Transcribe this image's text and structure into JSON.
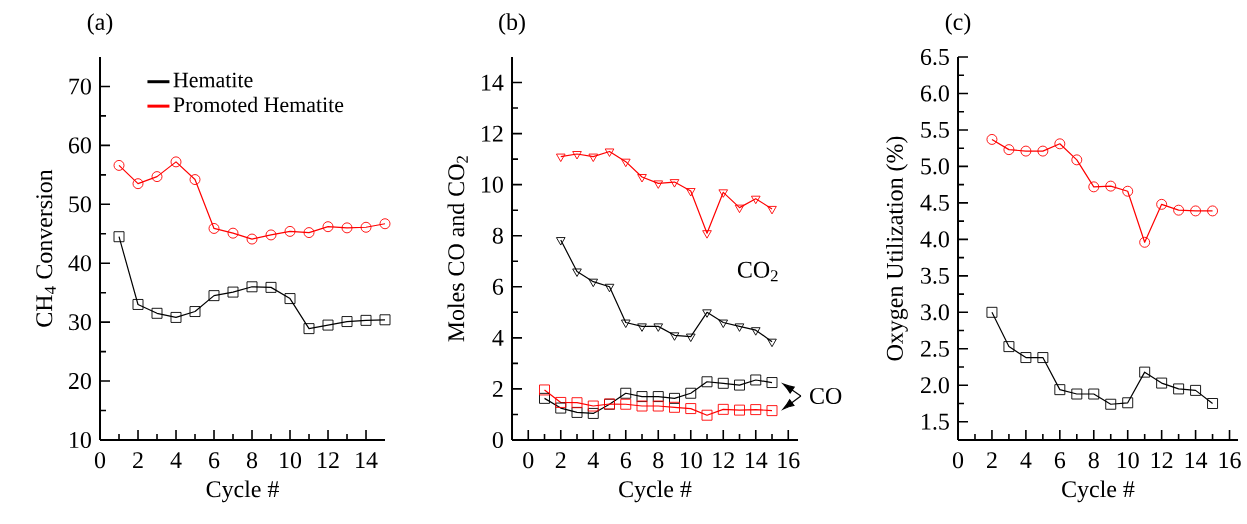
{
  "chart_data": [
    {
      "type": "line",
      "title": "(a)",
      "xlabel": "Cycle #",
      "ylabel": "CH$_{4}$ Conversion",
      "x": [
        1,
        2,
        3,
        4,
        5,
        6,
        7,
        8,
        9,
        10,
        11,
        12,
        13,
        14,
        15
      ],
      "series": [
        {
          "name": "Hematite",
          "color": "#000000",
          "marker": "square",
          "values": [
            44.5,
            33,
            31.5,
            30.8,
            31.8,
            34.5,
            35.1,
            36,
            35.9,
            34,
            28.9,
            29.5,
            30.1,
            30.3,
            30.4
          ]
        },
        {
          "name": "Promoted Hematite",
          "color": "#ff0000",
          "marker": "circle",
          "values": [
            56.6,
            53.5,
            54.7,
            57.2,
            54.2,
            45.9,
            45.1,
            44.1,
            44.8,
            45.4,
            45.2,
            46.2,
            46,
            46.1,
            46.7
          ]
        }
      ],
      "xlim": [
        0,
        15
      ],
      "ylim": [
        10,
        75
      ],
      "xticks": [
        0,
        2,
        4,
        6,
        8,
        10,
        12,
        14
      ],
      "yticks": [
        10,
        20,
        30,
        40,
        50,
        60,
        70
      ],
      "legend": "top left",
      "line_style": "solid"
    },
    {
      "type": "line",
      "title": "(b)",
      "xlabel": "Cycle #",
      "ylabel": "Moles CO and CO$_{2}$",
      "series": [
        {
          "color": "#000000",
          "marker": "triangle",
          "x": [
            2,
            3,
            4,
            5,
            6,
            7,
            8,
            9,
            10,
            11,
            12,
            13,
            14,
            15
          ],
          "values": [
            7.83,
            6.6,
            6.2,
            6.0,
            4.6,
            4.45,
            4.45,
            4.1,
            4.05,
            5.0,
            4.6,
            4.45,
            4.3,
            3.85
          ]
        },
        {
          "color": "#ff0000",
          "marker": "triangle",
          "x": [
            2,
            3,
            4,
            5,
            6,
            7,
            8,
            9,
            10,
            11,
            12,
            13,
            14,
            15
          ],
          "values": [
            11.1,
            11.2,
            11.1,
            11.3,
            10.9,
            10.3,
            10.05,
            10.1,
            9.75,
            8.1,
            9.7,
            9.1,
            9.45,
            9.05
          ]
        },
        {
          "color": "#000000",
          "marker": "square",
          "x": [
            1,
            2,
            3,
            4,
            5,
            6,
            7,
            8,
            9,
            10,
            11,
            12,
            13,
            14,
            15
          ],
          "values": [
            1.63,
            1.25,
            1.08,
            1.04,
            1.4,
            1.83,
            1.7,
            1.7,
            1.63,
            1.83,
            2.28,
            2.22,
            2.15,
            2.35,
            2.25
          ]
        },
        {
          "color": "#ff0000",
          "marker": "square",
          "x": [
            1,
            2,
            3,
            4,
            5,
            6,
            7,
            8,
            9,
            10,
            11,
            12,
            13,
            14,
            15
          ],
          "values": [
            1.96,
            1.47,
            1.46,
            1.33,
            1.41,
            1.4,
            1.33,
            1.33,
            1.28,
            1.23,
            0.97,
            1.2,
            1.17,
            1.19,
            1.15
          ]
        }
      ],
      "annotations": [
        "CO$_{2}$",
        "CO"
      ],
      "xlim": [
        -1,
        16.6
      ],
      "ylim": [
        0,
        15
      ],
      "xticks": [
        0,
        2,
        4,
        6,
        8,
        10,
        12,
        14,
        16
      ],
      "yticks": [
        0,
        2,
        4,
        6,
        8,
        10,
        12,
        14
      ],
      "legend": false,
      "line_style": "solid"
    },
    {
      "type": "line",
      "title": "(c)",
      "xlabel": "Cycle #",
      "ylabel": "Oxygen Utilization (%)",
      "x": [
        2,
        3,
        4,
        5,
        6,
        7,
        8,
        9,
        10,
        11,
        12,
        13,
        14,
        15
      ],
      "series": [
        {
          "color": "#000000",
          "marker": "square",
          "values": [
            3.0,
            2.53,
            2.38,
            2.38,
            1.94,
            1.88,
            1.88,
            1.74,
            1.76,
            2.18,
            2.03,
            1.95,
            1.93,
            1.75
          ]
        },
        {
          "color": "#ff0000",
          "marker": "circle",
          "values": [
            5.37,
            5.23,
            5.21,
            5.21,
            5.31,
            5.09,
            4.72,
            4.73,
            4.66,
            3.96,
            4.48,
            4.4,
            4.39,
            4.39
          ]
        }
      ],
      "xlim": [
        0,
        16.5
      ],
      "ylim": [
        1.25,
        6.5
      ],
      "xticks": [
        0,
        2,
        4,
        6,
        8,
        10,
        12,
        14,
        16
      ],
      "yticks": [
        1.5,
        {
          "value": 2,
          "label": "2.0"
        },
        2.5,
        {
          "value": 3,
          "label": "3.0"
        },
        3.5,
        {
          "value": 4,
          "label": "4.0"
        },
        4.5,
        {
          "value": 5,
          "label": "5.0"
        },
        5.5,
        {
          "value": 6,
          "label": "6.0"
        },
        6.5
      ],
      "legend": false,
      "line_style": "solid"
    }
  ]
}
